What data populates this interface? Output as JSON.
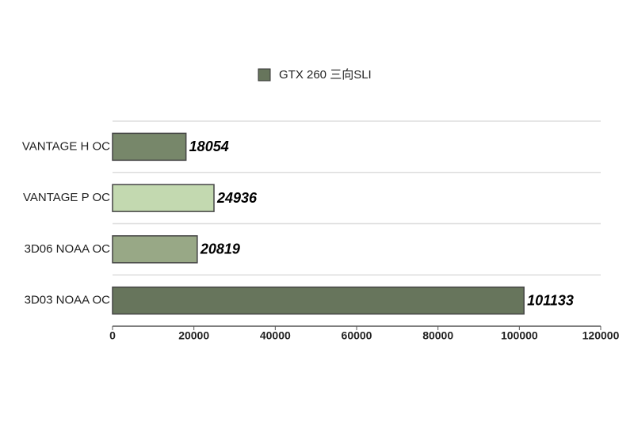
{
  "chart_data": {
    "type": "barh",
    "categories": [
      "VANTAGE H OC",
      "VANTAGE P OC",
      "3D06 NOAA OC",
      "3D03 NOAA OC"
    ],
    "series": [
      {
        "name": "GTX 260 三向SLI",
        "color": "#67755c",
        "colors": [
          "#77876a",
          "#c3d9b0",
          "#98a886",
          "#67755c"
        ],
        "values": [
          18054,
          24936,
          20819,
          101133
        ]
      }
    ],
    "xlim": [
      0,
      120000
    ],
    "xticks": [
      0,
      20000,
      40000,
      60000,
      80000,
      100000,
      120000
    ],
    "grid": true,
    "legend": "top"
  }
}
